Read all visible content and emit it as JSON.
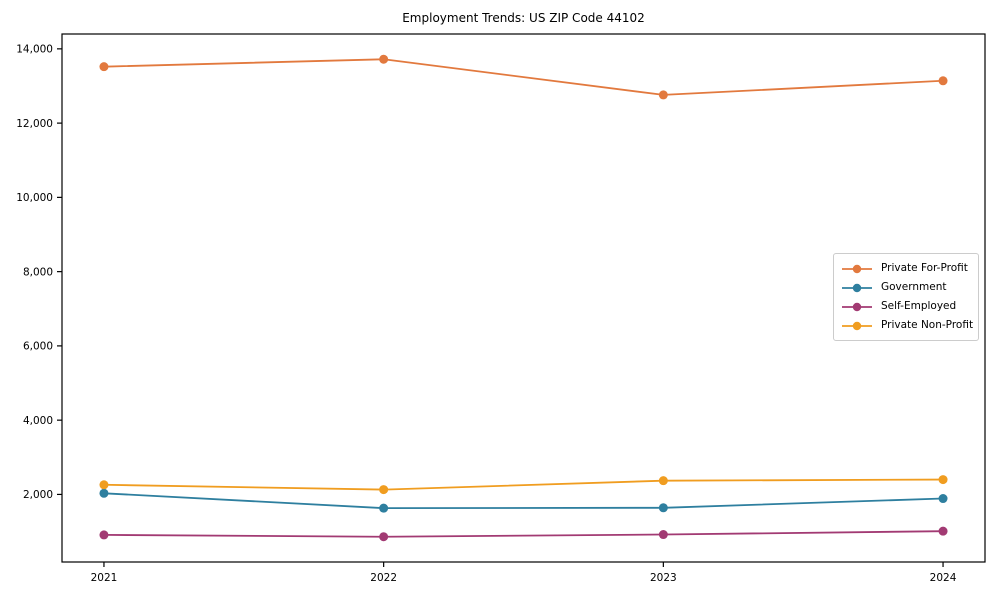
{
  "figure": {
    "title": "Employment Trends: US ZIP Code 44102"
  },
  "chart_data": {
    "type": "line",
    "title": "Employment Trends: US ZIP Code 44102",
    "xlabel": "",
    "ylabel": "",
    "x": [
      2021,
      2022,
      2023,
      2024
    ],
    "xtick_labels": [
      "2021",
      "2022",
      "2023",
      "2024"
    ],
    "yticks": [
      2000,
      4000,
      6000,
      8000,
      10000,
      12000,
      14000
    ],
    "ytick_labels": [
      "2,000",
      "4,000",
      "6,000",
      "8,000",
      "10,000",
      "12,000",
      "14,000"
    ],
    "xlim": [
      2020.85,
      2024.15
    ],
    "ylim": [
      180,
      14400
    ],
    "grid": false,
    "marker": "circle",
    "legend_position": "center right",
    "series": [
      {
        "name": "Private For-Profit",
        "color": "#e2793e",
        "values": [
          13520,
          13720,
          12760,
          13140
        ]
      },
      {
        "name": "Government",
        "color": "#2e7f9f",
        "values": [
          2030,
          1630,
          1640,
          1890
        ]
      },
      {
        "name": "Self-Employed",
        "color": "#a23a73",
        "values": [
          910,
          860,
          920,
          1010
        ]
      },
      {
        "name": "Private Non-Profit",
        "color": "#f09d20",
        "values": [
          2260,
          2130,
          2370,
          2400
        ]
      }
    ],
    "style": {
      "spine_color": "#000000",
      "tick_color": "#000000",
      "text_color": "#000000",
      "background": "#ffffff",
      "legend_border": "#cccccc"
    }
  }
}
